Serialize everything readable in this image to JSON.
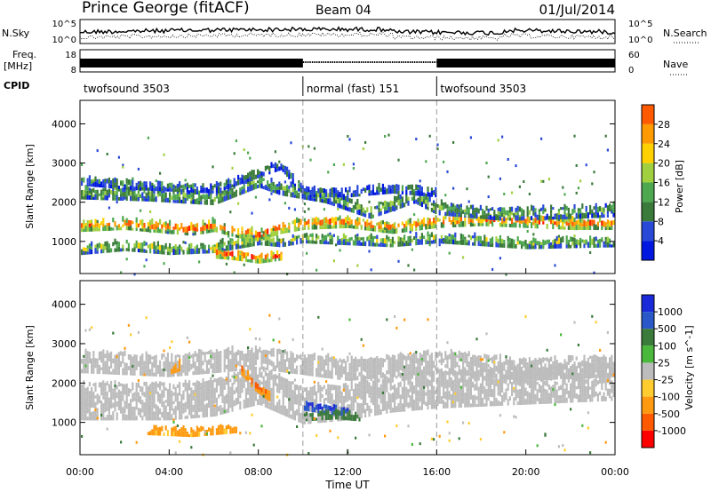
{
  "header": {
    "station": "Prince George (fitACF)",
    "beam": "Beam 04",
    "date": "01/Jul/2014"
  },
  "noise_panel": {
    "left_label": "N.Sky",
    "right_label": "N.Search",
    "left_ticks": [
      "10^5",
      "10^0"
    ],
    "right_ticks": [
      "10^5",
      "10^0"
    ]
  },
  "freq_panel": {
    "left_label_top": "Freq.",
    "left_label_bottom": "[MHz]",
    "right_label": "Nave",
    "left_ticks": [
      "18",
      "8"
    ],
    "right_ticks": [
      "60",
      "0"
    ]
  },
  "cpid": {
    "label": "CPID",
    "segments": [
      {
        "name": "twofsound 3503",
        "start_hr": 0,
        "end_hr": 10
      },
      {
        "name": "normal (fast) 151",
        "start_hr": 10,
        "end_hr": 16
      },
      {
        "name": "twofsound 3503",
        "start_hr": 16,
        "end_hr": 24
      }
    ]
  },
  "time_axis": {
    "label": "Time UT",
    "ticks": [
      "00:00",
      "04:00",
      "08:00",
      "12:00",
      "16:00",
      "20:00",
      "00:00"
    ]
  },
  "colors": {
    "power": [
      "#0018e0",
      "#2848d8",
      "#3a7a3a",
      "#4ea850",
      "#a0d040",
      "#ffd000",
      "#ff9a00",
      "#ff5a00",
      "#ff1a00",
      "#ff0000"
    ],
    "velocity": [
      "#1a2ad8",
      "#2a58c8",
      "#3a7a3a",
      "#4ab83a",
      "#bcbcbc",
      "#ffcc30",
      "#ff9a10",
      "#ff5a00",
      "#ff0000"
    ]
  },
  "chart_data": [
    {
      "type": "heatmap",
      "title": "",
      "ylabel": "Slant Range [km]",
      "ylim": [
        180,
        4600
      ],
      "yticks": [
        "1000",
        "2000",
        "3000",
        "4000"
      ],
      "colorbar": {
        "label": "Power [dB]",
        "range": [
          0,
          32
        ],
        "ticks": [
          "4",
          "8",
          "12",
          "16",
          "20",
          "24",
          "28"
        ]
      },
      "bands": [
        {
          "path": [
            [
              0,
              1350
            ],
            [
              2,
              1400
            ],
            [
              4,
              1300
            ],
            [
              5,
              1250
            ],
            [
              6,
              1350
            ],
            [
              7,
              1200
            ],
            [
              8,
              1100
            ],
            [
              9,
              1300
            ],
            [
              10,
              1400
            ],
            [
              12,
              1450
            ],
            [
              14,
              1300
            ],
            [
              16,
              1450
            ],
            [
              18,
              1500
            ],
            [
              20,
              1450
            ],
            [
              22,
              1400
            ],
            [
              24,
              1400
            ]
          ],
          "width_km": 220,
          "value": 24
        },
        {
          "path": [
            [
              0,
              2200
            ],
            [
              3,
              2150
            ],
            [
              6,
              2050
            ],
            [
              8,
              2500
            ],
            [
              9,
              2300
            ],
            [
              11,
              2100
            ],
            [
              13,
              1700
            ],
            [
              14,
              1900
            ],
            [
              15,
              2100
            ],
            [
              16,
              1800
            ],
            [
              19,
              1650
            ],
            [
              22,
              1700
            ],
            [
              24,
              1750
            ]
          ],
          "width_km": 260,
          "value": 12
        },
        {
          "path": [
            [
              0,
              750
            ],
            [
              2,
              850
            ],
            [
              4,
              750
            ],
            [
              6,
              800
            ],
            [
              7,
              900
            ],
            [
              8,
              1000
            ],
            [
              9,
              950
            ],
            [
              10,
              1050
            ],
            [
              12,
              1000
            ],
            [
              14,
              950
            ],
            [
              16,
              1050
            ],
            [
              20,
              900
            ],
            [
              24,
              950
            ]
          ],
          "width_km": 200,
          "value": 14
        },
        {
          "path": [
            [
              0,
              2500
            ],
            [
              2,
              2400
            ],
            [
              4,
              2350
            ],
            [
              6,
              2300
            ],
            [
              8,
              2700
            ],
            [
              9,
              2900
            ],
            [
              10,
              2200
            ],
            [
              12,
              2200
            ],
            [
              14,
              2300
            ],
            [
              16,
              2200
            ]
          ],
          "width_km": 160,
          "value": 8
        },
        {
          "path": [
            [
              6,
              650
            ],
            [
              7,
              600
            ],
            [
              8,
              520
            ],
            [
              9,
              600
            ]
          ],
          "width_km": 180,
          "value": 27
        }
      ]
    },
    {
      "type": "heatmap",
      "title": "",
      "ylabel": "Slant Range [km]",
      "ylim": [
        180,
        4600
      ],
      "yticks": [
        "1000",
        "2000",
        "3000",
        "4000"
      ],
      "colorbar": {
        "label": "Velocity [m s^-1]",
        "ticks": [
          "1000",
          "500",
          "100",
          "25",
          "-25",
          "-100",
          "-500",
          "-1000"
        ]
      },
      "bands": [
        {
          "path": [
            [
              0,
              1500
            ],
            [
              4,
              1500
            ],
            [
              6,
              1600
            ],
            [
              8,
              1900
            ],
            [
              10,
              1400
            ],
            [
              12,
              1500
            ],
            [
              14,
              1700
            ],
            [
              16,
              1800
            ],
            [
              20,
              1900
            ],
            [
              24,
              2000
            ]
          ],
          "width_km": 900,
          "value": 0
        },
        {
          "path": [
            [
              0,
              2500
            ],
            [
              4,
              2400
            ],
            [
              8,
              2600
            ],
            [
              12,
              2300
            ],
            [
              16,
              2500
            ],
            [
              20,
              2300
            ],
            [
              24,
              2400
            ]
          ],
          "width_km": 500,
          "value": 0
        },
        {
          "path": [
            [
              10,
              1400
            ],
            [
              11,
              1300
            ],
            [
              12,
              1250
            ]
          ],
          "width_km": 200,
          "value": 900
        },
        {
          "path": [
            [
              10,
              1100
            ],
            [
              11.5,
              1150
            ],
            [
              12.5,
              1100
            ]
          ],
          "width_km": 150,
          "value": 200
        },
        {
          "path": [
            [
              7.2,
              2300
            ],
            [
              7.8,
              1900
            ],
            [
              8.5,
              1600
            ]
          ],
          "width_km": 180,
          "value": -400
        },
        {
          "path": [
            [
              3,
              750
            ],
            [
              5,
              700
            ],
            [
              7,
              800
            ]
          ],
          "width_km": 150,
          "value": -150
        },
        {
          "path": [
            [
              4,
              2300
            ],
            [
              4.5,
              2400
            ]
          ],
          "width_km": 180,
          "value": -200
        }
      ]
    }
  ]
}
